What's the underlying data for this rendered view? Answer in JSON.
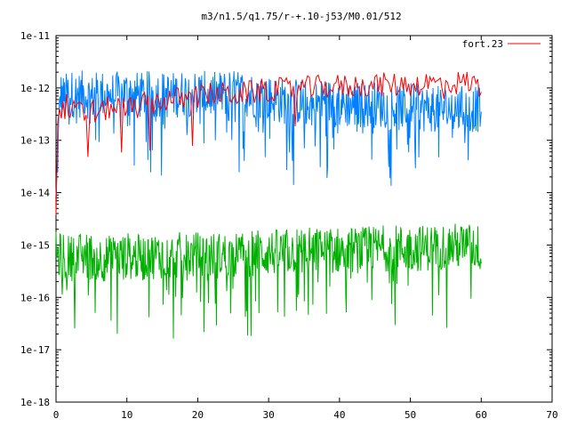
{
  "chart_data": {
    "type": "line",
    "title": "m3/n1.5/q1.75/r-+.10-j53/M0.01/512",
    "xlabel": "",
    "ylabel": "",
    "xlim": [
      0,
      70
    ],
    "ylim": [
      1e-18,
      1e-11
    ],
    "yscale": "log",
    "x_ticks": [
      0,
      10,
      20,
      30,
      40,
      50,
      60,
      70
    ],
    "x_tick_labels": [
      "0",
      "10",
      "20",
      "30",
      "40",
      "50",
      "60",
      "70"
    ],
    "y_ticks": [
      1e-18,
      1e-17,
      1e-16,
      1e-15,
      1e-14,
      1e-13,
      1e-12,
      1e-11
    ],
    "y_tick_labels": [
      "1e-18",
      "1e-17",
      "1e-16",
      "1e-15",
      "1e-14",
      "1e-13",
      "1e-12",
      "1e-11"
    ],
    "grid": false,
    "legend_position": "top-right",
    "series": [
      {
        "name": "fort.23",
        "color": "#ff0000",
        "x": [
          0.0,
          0.3,
          0.6,
          1.0,
          1.5,
          2.0,
          3.0,
          4.0,
          5.0,
          6.0,
          7.0,
          8.0,
          10.0,
          12.0,
          14.0,
          16.0,
          18.0,
          20.0,
          22.0,
          24.0,
          26.0,
          28.0,
          30.0,
          32.0,
          34.0,
          36.0,
          38.0,
          40.0,
          42.0,
          44.0,
          46.0,
          48.0,
          50.0,
          52.0,
          54.0,
          56.0,
          58.0,
          60.0
        ],
        "y": [
          5e-15,
          4e-13,
          6e-13,
          5e-13,
          6e-13,
          4e-13,
          5e-13,
          4e-13,
          5e-13,
          4e-13,
          5e-13,
          6e-13,
          5e-13,
          6e-13,
          7e-13,
          8e-13,
          8e-13,
          9e-13,
          1e-12,
          1e-12,
          1e-12,
          1.1e-12,
          1.2e-12,
          1.2e-12,
          1.3e-12,
          1.3e-12,
          1.4e-12,
          1.4e-12,
          1.4e-12,
          1.5e-12,
          1.5e-12,
          1.5e-12,
          1.5e-12,
          1.6e-12,
          1.6e-12,
          1.6e-12,
          1.7e-12,
          1.4e-12
        ]
      },
      {
        "name": "",
        "color": "#0080ff",
        "x": [
          0.0,
          0.3,
          0.6,
          1.0,
          2.0,
          3.0,
          4.0,
          5.0,
          6.0,
          8.0,
          10.0,
          12.0,
          14.0,
          16.0,
          18.0,
          20.0,
          22.0,
          24.0,
          26.0,
          28.0,
          30.0,
          32.0,
          34.0,
          36.0,
          38.0,
          40.0,
          42.0,
          44.0,
          46.0,
          48.0,
          50.0,
          52.0,
          54.0,
          56.0,
          58.0,
          60.0
        ],
        "y": [
          8e-15,
          1e-13,
          1e-12,
          8e-13,
          1e-12,
          9e-13,
          1e-12,
          8e-13,
          1e-12,
          9e-13,
          1e-12,
          9e-13,
          1e-12,
          9e-13,
          1e-12,
          1e-12,
          9e-13,
          1e-12,
          1e-12,
          9e-13,
          8e-13,
          7e-13,
          7e-13,
          6e-13,
          7e-13,
          6e-13,
          6e-13,
          6e-13,
          6e-13,
          5e-13,
          6e-13,
          5e-13,
          5e-13,
          5e-13,
          5e-13,
          5e-13
        ]
      },
      {
        "name": "",
        "color": "#00b000",
        "x": [
          0.0,
          2.0,
          4.0,
          6.0,
          8.0,
          10.0,
          12.0,
          14.0,
          16.0,
          18.0,
          20.0,
          22.0,
          24.0,
          26.0,
          28.0,
          30.0,
          32.0,
          34.0,
          36.0,
          38.0,
          40.0,
          42.0,
          44.0,
          46.0,
          48.0,
          50.0,
          52.0,
          54.0,
          56.0,
          58.0,
          60.0
        ],
        "y": [
          8e-16,
          7e-16,
          8e-16,
          7e-16,
          7e-16,
          8e-16,
          7e-16,
          8e-16,
          8e-16,
          8e-16,
          8e-16,
          8e-16,
          8e-16,
          8e-16,
          9e-16,
          9e-16,
          9e-16,
          1e-15,
          1e-15,
          1e-15,
          1e-15,
          1e-15,
          1e-15,
          1.1e-15,
          1.1e-15,
          1.1e-15,
          1.1e-15,
          1.2e-15,
          1.2e-15,
          1.2e-15,
          1.1e-15
        ]
      }
    ]
  }
}
